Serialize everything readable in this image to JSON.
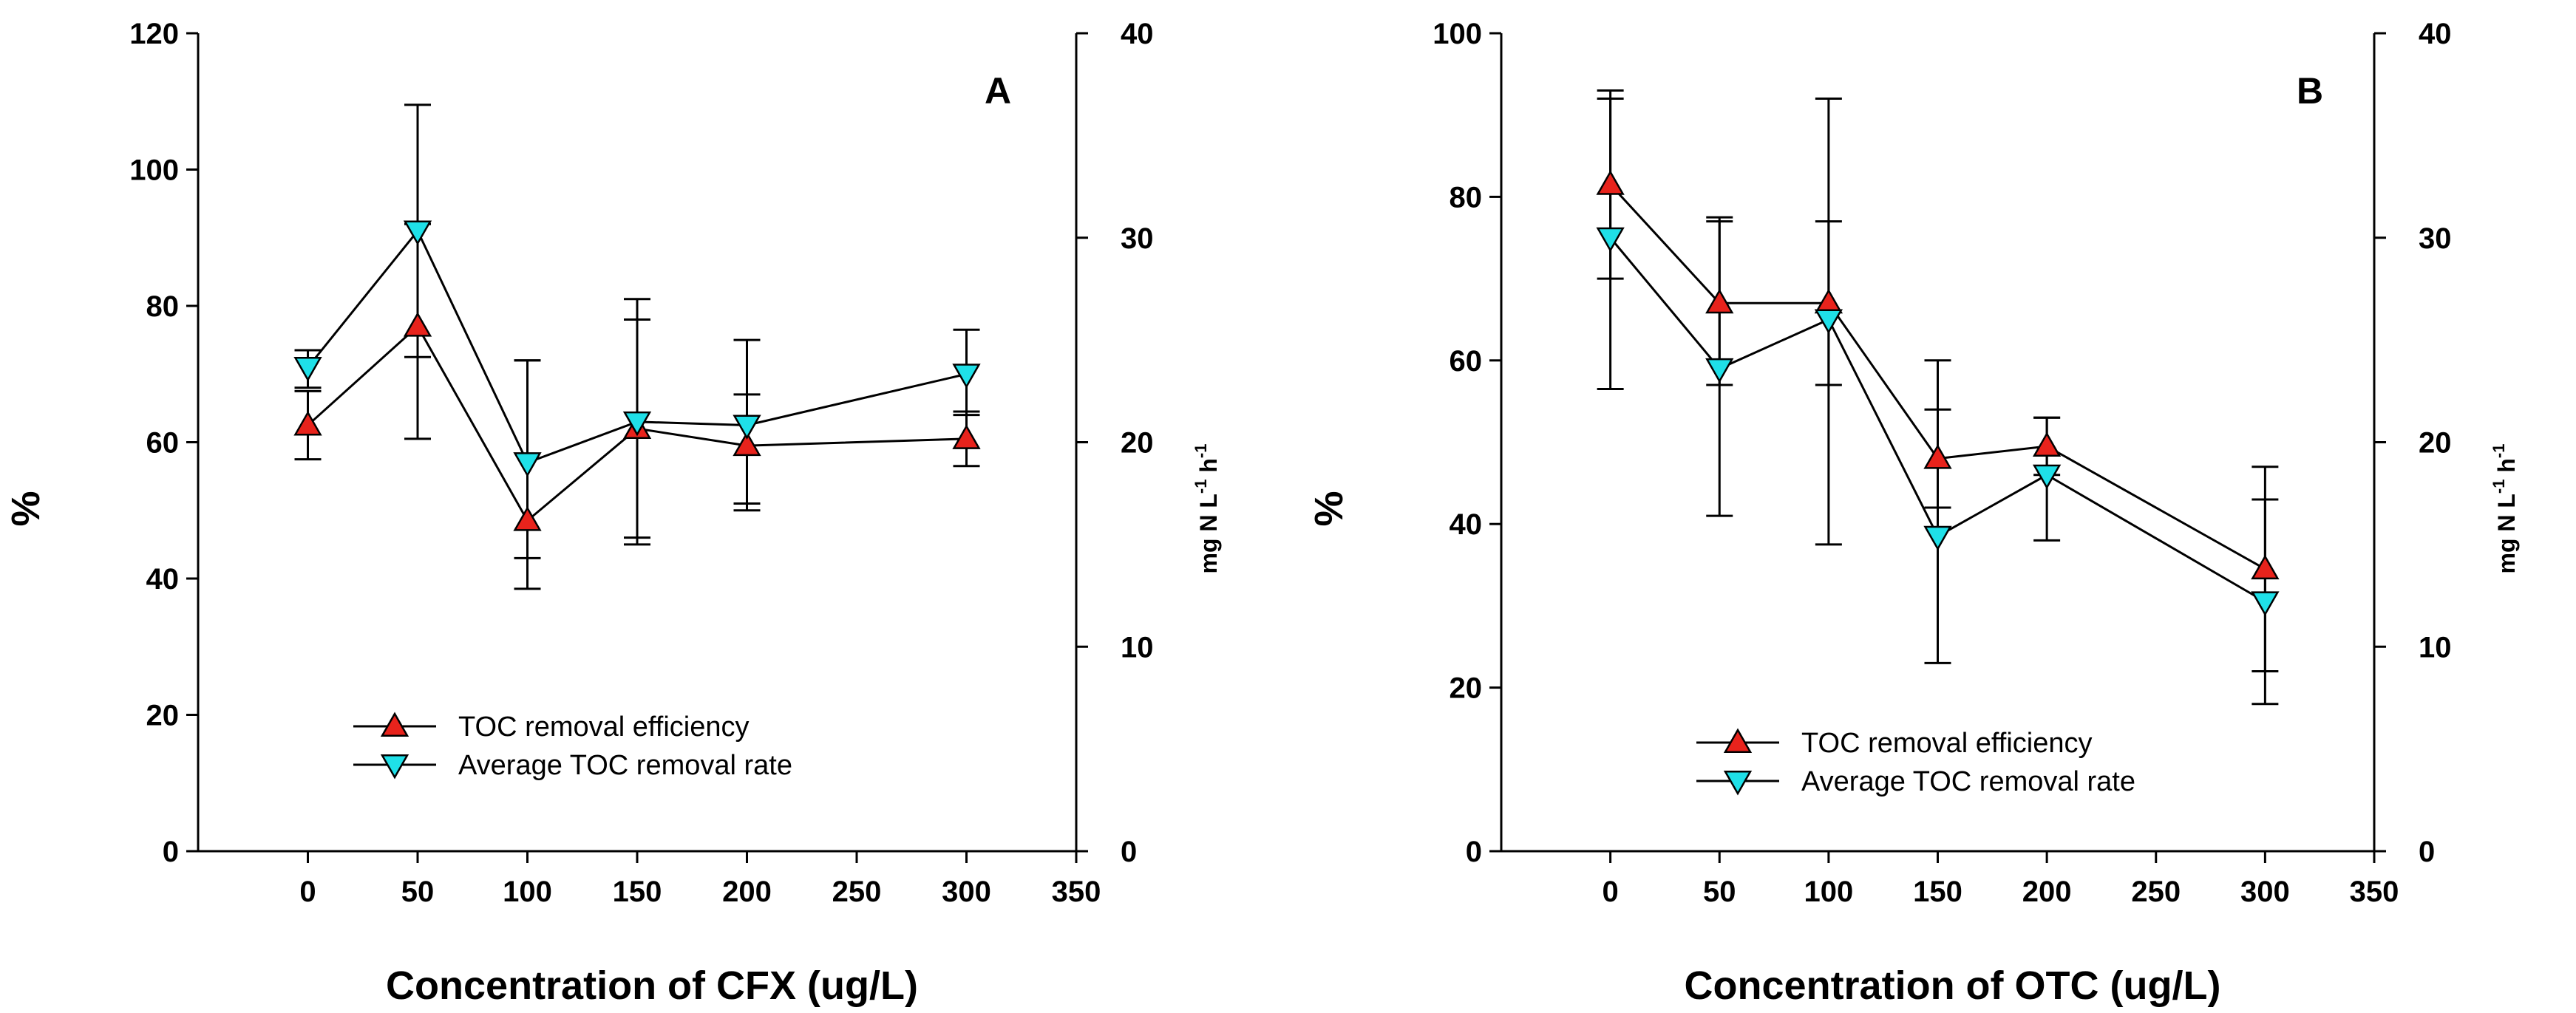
{
  "chart_data": [
    {
      "type": "line",
      "panel_label": "A",
      "xlabel": "Concentration of CFX (ug/L)",
      "ylabel": "%",
      "y2label_parts": [
        "mg N L",
        "-1",
        " h",
        "-1"
      ],
      "xlim": [
        -50,
        350
      ],
      "xticks": [
        "0",
        "50",
        "100",
        "150",
        "200",
        "250",
        "300",
        "350"
      ],
      "ylim": [
        0,
        120
      ],
      "yticks": [
        "0",
        "20",
        "40",
        "60",
        "80",
        "100",
        "120"
      ],
      "y2lim": [
        0,
        40
      ],
      "y2ticks": [
        "0",
        "10",
        "20",
        "30",
        "40"
      ],
      "legend_position": "bottom-center",
      "series": [
        {
          "name": "TOC removal efficiency",
          "axis": "left",
          "marker": "triangle-up",
          "color": "#e8231c",
          "x": [
            0,
            50,
            100,
            150,
            200,
            300
          ],
          "y": [
            62.5,
            77,
            48.5,
            62,
            59.5,
            60.5
          ],
          "err_high": [
            67.5,
            92,
            72,
            78,
            67,
            64.5
          ],
          "err_low": [
            57.5,
            60.5,
            38.5,
            46,
            51,
            56.5
          ]
        },
        {
          "name": "Average TOC removal rate",
          "axis": "left",
          "marker": "triangle-down",
          "color": "#1fe0e8",
          "x": [
            0,
            50,
            100,
            150,
            200,
            300
          ],
          "y": [
            71,
            91,
            57,
            63,
            62.5,
            70
          ],
          "err_high": [
            73.5,
            109.5,
            72,
            81,
            75,
            76.5
          ],
          "err_low": [
            68,
            72.5,
            43,
            45,
            50,
            64
          ]
        }
      ]
    },
    {
      "type": "line",
      "panel_label": "B",
      "xlabel": "Concentration of OTC (ug/L)",
      "ylabel": "%",
      "y2label_parts": [
        "mg N L",
        "-1",
        " h",
        "-1"
      ],
      "xlim": [
        -50,
        350
      ],
      "xticks": [
        "0",
        "50",
        "100",
        "150",
        "200",
        "250",
        "300",
        "350"
      ],
      "ylim": [
        0,
        100
      ],
      "yticks": [
        "0",
        "20",
        "40",
        "60",
        "80",
        "100"
      ],
      "y2lim": [
        0,
        40
      ],
      "y2ticks": [
        "0",
        "10",
        "20",
        "30",
        "40"
      ],
      "legend_position": "bottom-left",
      "series": [
        {
          "name": "TOC removal efficiency",
          "axis": "left",
          "marker": "triangle-up",
          "color": "#e8231c",
          "x": [
            0,
            50,
            100,
            150,
            200,
            300
          ],
          "y": [
            81.5,
            67,
            67,
            48,
            49.5,
            34.5
          ],
          "err_high": [
            92,
            77,
            77,
            54,
            53,
            47
          ],
          "err_low": [
            70,
            57,
            57,
            42,
            46,
            22
          ]
        },
        {
          "name": "Average TOC removal rate",
          "axis": "left",
          "marker": "triangle-down",
          "color": "#1fe0e8",
          "x": [
            0,
            50,
            100,
            150,
            200,
            300
          ],
          "y": [
            75,
            59,
            65,
            38.5,
            46,
            30.5
          ],
          "err_high": [
            93,
            77.5,
            92,
            60,
            53,
            43
          ],
          "err_low": [
            56.5,
            41,
            37.5,
            23,
            38,
            18
          ]
        }
      ]
    }
  ]
}
